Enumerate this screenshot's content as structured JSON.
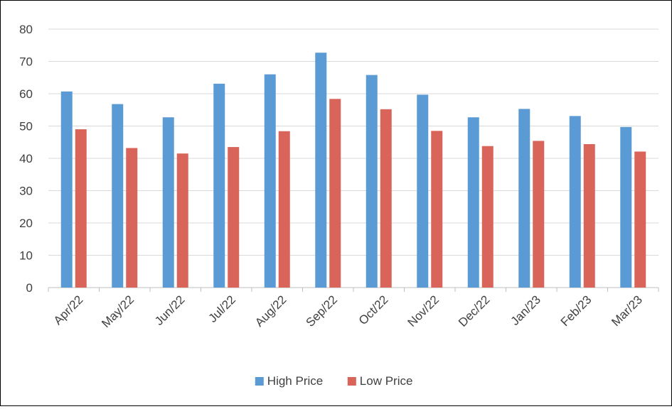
{
  "chart_data": {
    "type": "bar",
    "categories": [
      "Apr/22",
      "May/22",
      "Jun/22",
      "Jul/22",
      "Aug/22",
      "Sep/22",
      "Oct/22",
      "Nov/22",
      "Dec/22",
      "Jan/23",
      "Feb/23",
      "Mar/23"
    ],
    "series": [
      {
        "name": "High Price",
        "color": "#5b9bd5",
        "values": [
          60.7,
          56.8,
          52.7,
          63.1,
          66,
          72.7,
          65.8,
          59.7,
          52.7,
          55.3,
          53.1,
          49.7
        ]
      },
      {
        "name": "Low Price",
        "color": "#d9645a",
        "values": [
          49,
          43.2,
          41.5,
          43.5,
          48.4,
          58.4,
          55.2,
          48.5,
          43.8,
          45.4,
          44.4,
          42.1
        ]
      }
    ],
    "ylim": [
      0,
      80
    ],
    "yticks": [
      0,
      10,
      20,
      30,
      40,
      50,
      60,
      70,
      80
    ],
    "ytick_labels": [
      "0",
      "10",
      "20",
      "30",
      "40",
      "50",
      "60",
      "70",
      "80"
    ],
    "grid": true,
    "legend_position": "bottom",
    "title": "",
    "xlabel": "",
    "ylabel": ""
  }
}
